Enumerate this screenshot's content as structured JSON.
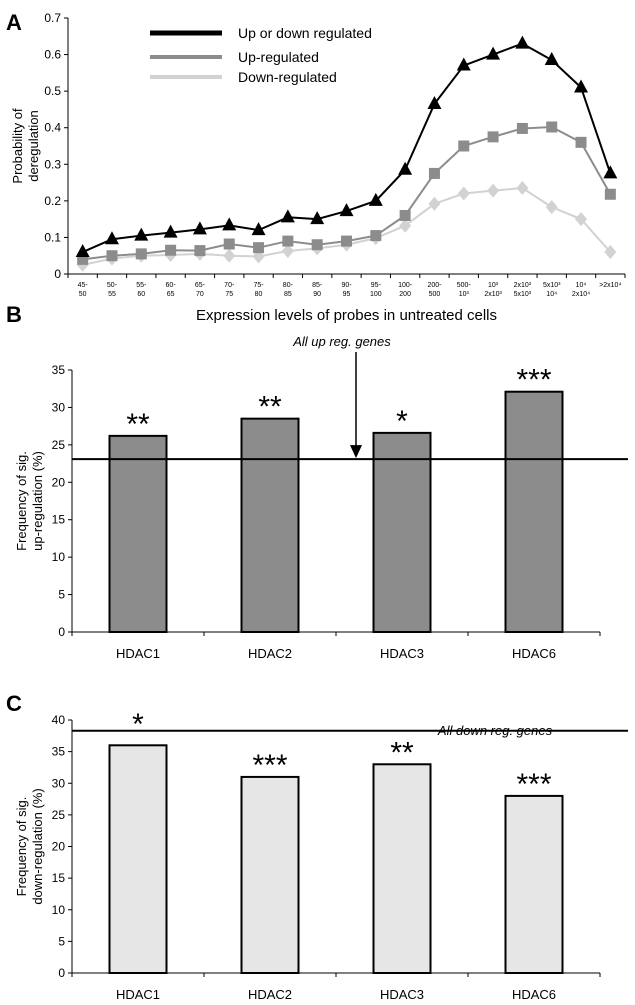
{
  "chart_data": [
    {
      "panel": "A",
      "type": "line",
      "ylabel": "Probability of deregulation",
      "xlabel": "Expression levels of probes in untreated cells",
      "ylim": [
        0,
        0.7
      ],
      "yticks": [
        "0",
        "0.1",
        "0.2",
        "0.3",
        "0.4",
        "0.5",
        "0.6",
        "0.7"
      ],
      "categories": [
        [
          "45-",
          "50"
        ],
        [
          "50-",
          "55"
        ],
        [
          "55-",
          "60"
        ],
        [
          "60-",
          "65"
        ],
        [
          "65-",
          "70"
        ],
        [
          "70-",
          "75"
        ],
        [
          "75-",
          "80"
        ],
        [
          "80-",
          "85"
        ],
        [
          "85-",
          "90"
        ],
        [
          "90-",
          "95"
        ],
        [
          "95-",
          "100"
        ],
        [
          "100-",
          "200"
        ],
        [
          "200-",
          "500"
        ],
        [
          "500-",
          "10³"
        ],
        [
          "10³",
          "2x10³"
        ],
        [
          "2x10³",
          "5x10³"
        ],
        [
          "5x10³",
          "10⁴"
        ],
        [
          "10⁴",
          "2x10⁴"
        ],
        [
          ">2x10⁴",
          ""
        ]
      ],
      "series": [
        {
          "name": "Up or down regulated",
          "color": "#000000",
          "marker": "triangle",
          "values": [
            0.06,
            0.095,
            0.105,
            0.113,
            0.122,
            0.133,
            0.12,
            0.155,
            0.15,
            0.172,
            0.2,
            0.285,
            0.465,
            0.57,
            0.6,
            0.63,
            0.585,
            0.51,
            0.275
          ]
        },
        {
          "name": "Up-regulated",
          "color": "#8c8c8c",
          "marker": "square",
          "values": [
            0.04,
            0.05,
            0.055,
            0.065,
            0.064,
            0.082,
            0.072,
            0.09,
            0.08,
            0.09,
            0.105,
            0.16,
            0.275,
            0.35,
            0.375,
            0.398,
            0.402,
            0.36,
            0.218
          ]
        },
        {
          "name": "Down-regulated",
          "color": "#d2d2d2",
          "marker": "diamond",
          "values": [
            0.025,
            0.042,
            0.05,
            0.052,
            0.055,
            0.05,
            0.048,
            0.063,
            0.07,
            0.08,
            0.098,
            0.132,
            0.192,
            0.22,
            0.228,
            0.235,
            0.183,
            0.15,
            0.06
          ]
        }
      ]
    },
    {
      "panel": "B",
      "type": "bar",
      "ylabel": "Frequency of sig. up-regulation (%)",
      "ylim": [
        0,
        35
      ],
      "yticks": [
        "0",
        "5",
        "10",
        "15",
        "20",
        "25",
        "30",
        "35"
      ],
      "categories": [
        "HDAC1",
        "HDAC2",
        "HDAC3",
        "HDAC6"
      ],
      "values": [
        26.2,
        28.5,
        26.6,
        32.1
      ],
      "significance": [
        "**",
        "**",
        "*",
        "***"
      ],
      "bar_color": "#8c8c8c",
      "reference_line": {
        "value": 23.1,
        "label": "All up reg. genes"
      }
    },
    {
      "panel": "C",
      "type": "bar",
      "ylabel": "Frequency of sig. down-regulation (%)",
      "ylim": [
        0,
        40
      ],
      "yticks": [
        "0",
        "5",
        "10",
        "15",
        "20",
        "25",
        "30",
        "35",
        "40"
      ],
      "categories": [
        "HDAC1",
        "HDAC2",
        "HDAC3",
        "HDAC6"
      ],
      "values": [
        36.0,
        31.0,
        33.0,
        28.0
      ],
      "significance": [
        "*",
        "***",
        "**",
        "***"
      ],
      "bar_color": "#e6e6e6",
      "reference_line": {
        "value": 38.3,
        "label": "All down reg. genes"
      }
    }
  ]
}
